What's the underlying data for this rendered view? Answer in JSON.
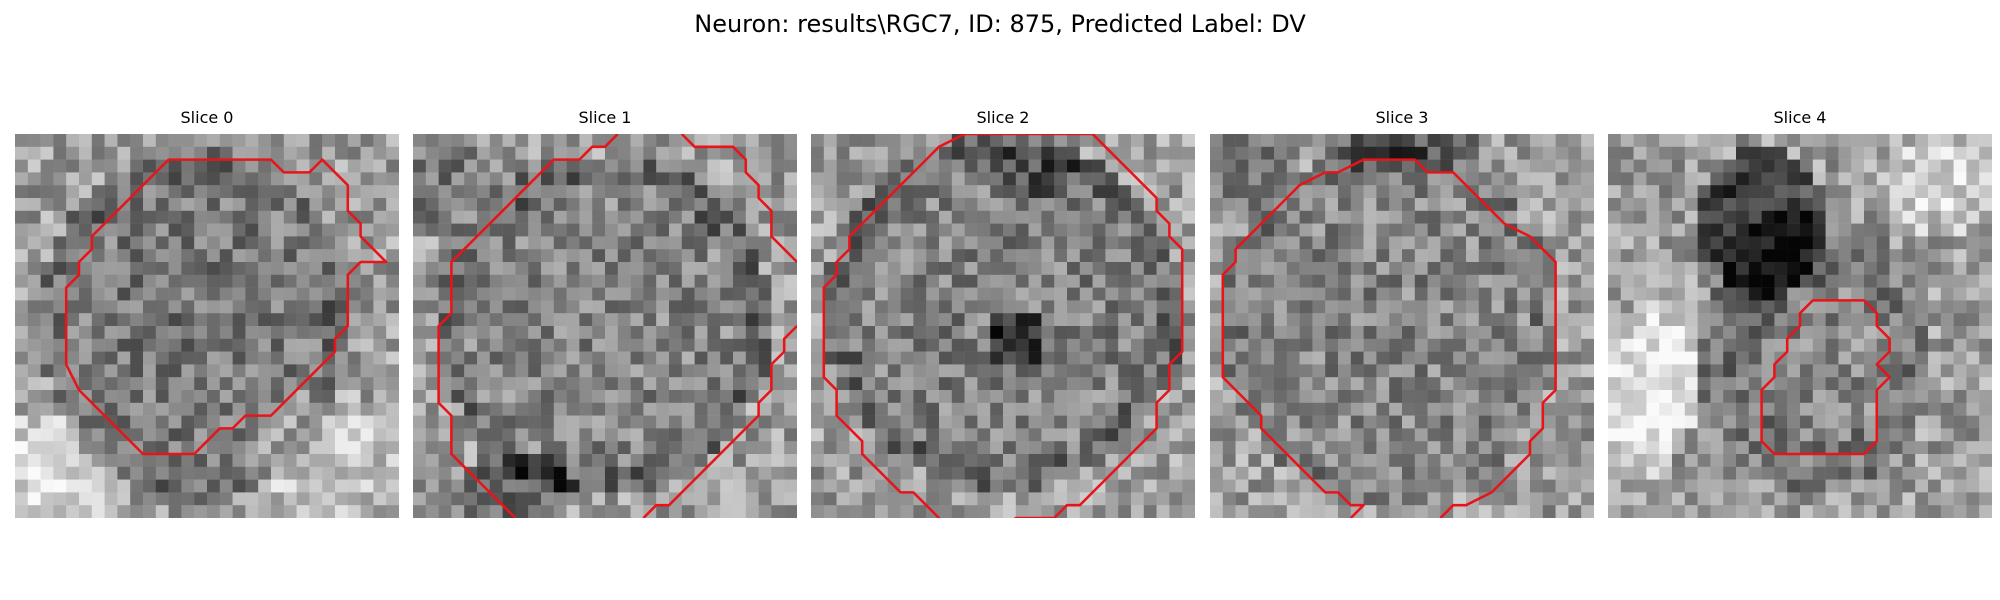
{
  "figure": {
    "title": "Neuron: results\\RGC7, ID: 875, Predicted Label: DV",
    "colormap": "gray",
    "contour_color": "#e8141a",
    "grid_size": 30,
    "panels": [
      {
        "title": "Slice 0",
        "seed": 11,
        "blobs": [
          {
            "cx": 14,
            "cy": 15,
            "rx": 12,
            "ry": 14,
            "d": -0.28
          },
          {
            "cx": 14,
            "cy": 15,
            "rx": 10,
            "ry": 11.5,
            "d": 0.12
          },
          {
            "cx": 2,
            "cy": 27,
            "rx": 6,
            "ry": 5,
            "d": 0.25
          },
          {
            "cx": 24,
            "cy": 25,
            "rx": 6,
            "ry": 5,
            "d": 0.18
          }
        ],
        "contour": [
          [
            12,
            2
          ],
          [
            20,
            2
          ],
          [
            21,
            3
          ],
          [
            23,
            3
          ],
          [
            24,
            2
          ],
          [
            26,
            4
          ],
          [
            26,
            6
          ],
          [
            27,
            7
          ],
          [
            27,
            8
          ],
          [
            28,
            9
          ],
          [
            29,
            10
          ],
          [
            27,
            10
          ],
          [
            26,
            11
          ],
          [
            26,
            15
          ],
          [
            25,
            16
          ],
          [
            25,
            17
          ],
          [
            24,
            18
          ],
          [
            23,
            19
          ],
          [
            22,
            20
          ],
          [
            21,
            21
          ],
          [
            20,
            22
          ],
          [
            18,
            22
          ],
          [
            17,
            23
          ],
          [
            16,
            23
          ],
          [
            15,
            24
          ],
          [
            14,
            25
          ],
          [
            10,
            25
          ],
          [
            9,
            24
          ],
          [
            8,
            23
          ],
          [
            6,
            21
          ],
          [
            5,
            20
          ],
          [
            4,
            18
          ],
          [
            4,
            14
          ],
          [
            4,
            12
          ],
          [
            5,
            11
          ],
          [
            5,
            10
          ],
          [
            6,
            9
          ],
          [
            6,
            8
          ],
          [
            7,
            7
          ],
          [
            8,
            6
          ],
          [
            9,
            5
          ],
          [
            10,
            4
          ],
          [
            11,
            3
          ]
        ],
        "closed": true,
        "extra_contours": []
      },
      {
        "title": "Slice 1",
        "seed": 23,
        "blobs": [
          {
            "cx": 15,
            "cy": 15,
            "rx": 13,
            "ry": 13.5,
            "d": -0.3
          },
          {
            "cx": 15,
            "cy": 15,
            "rx": 11,
            "ry": 11.5,
            "d": 0.2
          },
          {
            "cx": 3,
            "cy": 4,
            "rx": 4,
            "ry": 4,
            "d": -0.15
          },
          {
            "cx": 8,
            "cy": 28,
            "rx": 5,
            "ry": 3,
            "d": -0.25
          }
        ],
        "contour": [
          [
            16,
            0
          ],
          [
            15,
            1
          ],
          [
            14,
            1
          ],
          [
            13,
            2
          ],
          [
            11,
            2
          ],
          [
            10,
            3
          ],
          [
            9,
            4
          ],
          [
            8,
            5
          ],
          [
            7,
            6
          ],
          [
            6,
            7
          ],
          [
            5,
            8
          ],
          [
            4,
            9
          ],
          [
            3,
            10
          ],
          [
            3,
            12
          ],
          [
            3,
            14
          ],
          [
            2,
            15
          ],
          [
            2,
            18
          ],
          [
            2,
            21
          ],
          [
            3,
            22
          ],
          [
            3,
            25
          ],
          [
            4,
            26
          ],
          [
            5,
            27
          ],
          [
            6,
            28
          ],
          [
            7,
            29
          ],
          [
            8,
            30
          ]
        ],
        "closed": false,
        "extra_contours": [
          [
            [
              21,
              0
            ],
            [
              22,
              1
            ],
            [
              25,
              1
            ],
            [
              26,
              2
            ],
            [
              26,
              3
            ],
            [
              27,
              4
            ],
            [
              27,
              5
            ],
            [
              28,
              6
            ],
            [
              28,
              8
            ],
            [
              29,
              9
            ],
            [
              30,
              10
            ]
          ],
          [
            [
              30,
              15
            ],
            [
              29,
              16
            ],
            [
              29,
              17
            ],
            [
              28,
              18
            ],
            [
              28,
              20
            ],
            [
              27,
              21
            ],
            [
              27,
              22
            ],
            [
              26,
              23
            ],
            [
              25,
              24
            ],
            [
              24,
              25
            ],
            [
              23,
              26
            ],
            [
              22,
              27
            ],
            [
              21,
              28
            ],
            [
              20,
              29
            ],
            [
              19,
              29
            ],
            [
              18,
              30
            ]
          ]
        ]
      },
      {
        "title": "Slice 2",
        "seed": 37,
        "blobs": [
          {
            "cx": 15,
            "cy": 14,
            "rx": 14,
            "ry": 14,
            "d": -0.3
          },
          {
            "cx": 15,
            "cy": 14,
            "rx": 12,
            "ry": 12,
            "d": 0.18
          },
          {
            "cx": 16,
            "cy": 16,
            "rx": 2.5,
            "ry": 2.5,
            "d": -0.35
          },
          {
            "cx": 17,
            "cy": 3,
            "rx": 5,
            "ry": 2,
            "d": -0.2
          }
        ],
        "contour": [
          [
            12,
            0
          ],
          [
            13,
            0
          ],
          [
            22,
            0
          ],
          [
            23,
            1
          ],
          [
            24,
            2
          ],
          [
            25,
            3
          ],
          [
            26,
            4
          ],
          [
            27,
            5
          ],
          [
            27,
            6
          ],
          [
            28,
            7
          ],
          [
            28,
            8
          ],
          [
            29,
            9
          ],
          [
            29,
            14
          ],
          [
            29,
            17
          ],
          [
            28,
            18
          ],
          [
            28,
            20
          ],
          [
            27,
            21
          ],
          [
            27,
            23
          ],
          [
            26,
            24
          ],
          [
            25,
            25
          ],
          [
            24,
            26
          ],
          [
            23,
            27
          ],
          [
            22,
            28
          ],
          [
            21,
            29
          ],
          [
            20,
            29
          ],
          [
            19,
            30
          ],
          [
            16,
            30
          ],
          [
            15,
            31
          ]
        ],
        "closed": false,
        "extra_contours": [
          [
            [
              12,
              0
            ],
            [
              10,
              1
            ],
            [
              9,
              2
            ],
            [
              8,
              3
            ],
            [
              7,
              4
            ],
            [
              6,
              5
            ],
            [
              5,
              6
            ],
            [
              4,
              7
            ],
            [
              3,
              8
            ],
            [
              3,
              9
            ],
            [
              2,
              10
            ],
            [
              2,
              11
            ],
            [
              1,
              12
            ],
            [
              1,
              18
            ],
            [
              1,
              19
            ],
            [
              2,
              20
            ],
            [
              2,
              22
            ],
            [
              3,
              23
            ],
            [
              4,
              24
            ],
            [
              4,
              25
            ],
            [
              5,
              26
            ],
            [
              6,
              27
            ],
            [
              7,
              28
            ],
            [
              8,
              28
            ],
            [
              9,
              29
            ],
            [
              10,
              30
            ],
            [
              10,
              31
            ]
          ]
        ]
      },
      {
        "title": "Slice 3",
        "seed": 53,
        "blobs": [
          {
            "cx": 14,
            "cy": 15,
            "rx": 13,
            "ry": 14,
            "d": -0.2
          },
          {
            "cx": 14,
            "cy": 15,
            "rx": 11,
            "ry": 12,
            "d": 0.1
          },
          {
            "cx": 3,
            "cy": 3,
            "rx": 4,
            "ry": 3,
            "d": -0.15
          },
          {
            "cx": 15,
            "cy": 1,
            "rx": 6,
            "ry": 2,
            "d": -0.25
          }
        ],
        "contour": [
          [
            9,
            3
          ],
          [
            10,
            3
          ],
          [
            12,
            2
          ],
          [
            16,
            2
          ],
          [
            17,
            3
          ],
          [
            19,
            3
          ],
          [
            20,
            4
          ],
          [
            21,
            5
          ],
          [
            22,
            6
          ],
          [
            23,
            7
          ],
          [
            25,
            8
          ],
          [
            26,
            9
          ],
          [
            27,
            10
          ],
          [
            27,
            15
          ],
          [
            27,
            20
          ],
          [
            26,
            21
          ],
          [
            26,
            23
          ],
          [
            25,
            24
          ],
          [
            25,
            25
          ],
          [
            24,
            26
          ],
          [
            23,
            27
          ],
          [
            22,
            28
          ],
          [
            20,
            29
          ],
          [
            19,
            29
          ],
          [
            18,
            30
          ]
        ],
        "closed": false,
        "extra_contours": [
          [
            [
              9,
              3
            ],
            [
              7,
              4
            ],
            [
              6,
              5
            ],
            [
              5,
              6
            ],
            [
              4,
              7
            ],
            [
              3,
              8
            ],
            [
              2,
              9
            ],
            [
              2,
              10
            ],
            [
              1,
              11
            ],
            [
              1,
              18
            ],
            [
              1,
              19
            ],
            [
              2,
              20
            ],
            [
              3,
              21
            ],
            [
              4,
              22
            ],
            [
              4,
              23
            ],
            [
              5,
              24
            ],
            [
              6,
              25
            ],
            [
              7,
              26
            ],
            [
              8,
              27
            ],
            [
              9,
              28
            ],
            [
              10,
              28
            ],
            [
              11,
              29
            ],
            [
              12,
              29
            ],
            [
              11,
              30
            ]
          ]
        ]
      },
      {
        "title": "Slice 4",
        "seed": 71,
        "blobs": [
          {
            "cx": 12,
            "cy": 7,
            "rx": 5,
            "ry": 6,
            "d": -0.45
          },
          {
            "cx": 16,
            "cy": 17,
            "rx": 9,
            "ry": 11,
            "d": -0.2
          },
          {
            "cx": 17,
            "cy": 18,
            "rx": 5,
            "ry": 6,
            "d": 0.12
          },
          {
            "cx": 3,
            "cy": 20,
            "rx": 4,
            "ry": 7,
            "d": 0.3
          },
          {
            "cx": 26,
            "cy": 4,
            "rx": 5,
            "ry": 4,
            "d": 0.2
          }
        ],
        "contour": [
          [
            16,
            13
          ],
          [
            20,
            13
          ],
          [
            21,
            14
          ],
          [
            21,
            15
          ],
          [
            22,
            16
          ],
          [
            22,
            17
          ],
          [
            21,
            18
          ],
          [
            22,
            19
          ],
          [
            21,
            20
          ],
          [
            21,
            24
          ],
          [
            20,
            25
          ],
          [
            13,
            25
          ],
          [
            12,
            24
          ],
          [
            12,
            21
          ],
          [
            12,
            20
          ],
          [
            13,
            19
          ],
          [
            13,
            18
          ],
          [
            14,
            17
          ],
          [
            14,
            16
          ],
          [
            15,
            15
          ],
          [
            15,
            14
          ]
        ],
        "closed": true,
        "extra_contours": []
      }
    ]
  }
}
